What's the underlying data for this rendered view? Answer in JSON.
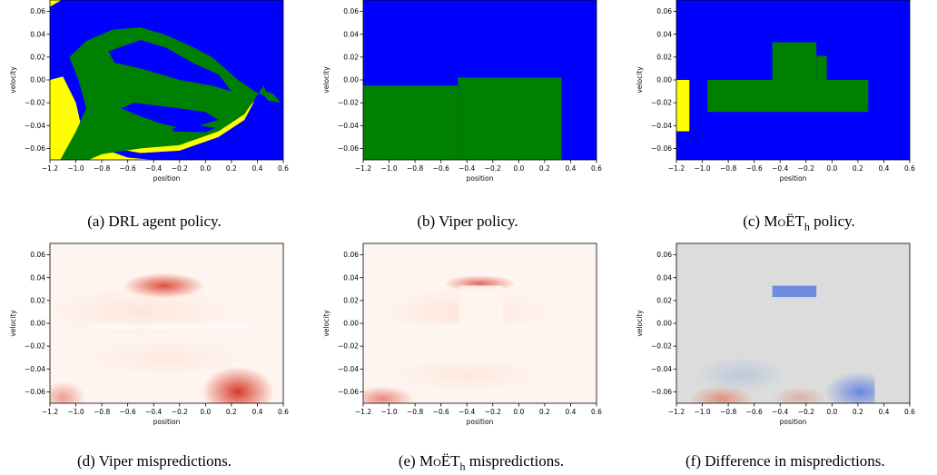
{
  "colors": {
    "class_left": "#ffff00",
    "class_none": "#008000",
    "class_right": "#0000ff",
    "reds_light": "#fff5f0",
    "reds_dark": "#d7301f",
    "diff_neutral": "#dcdcdc",
    "diff_blue": "#4a72e0",
    "diff_red": "#e0603a"
  },
  "captions": {
    "a": "(a) DRL agent policy.",
    "b": "(b) Viper policy.",
    "c_prefix": "(c) ",
    "c_name": "MoËT",
    "c_sub": "h",
    "c_suffix": " policy.",
    "d": "(d) Viper mispredictions.",
    "e_prefix": "(e) ",
    "e_name": "MoËT",
    "e_sub": "h",
    "e_suffix": " mispredictions.",
    "f": "(f) Difference in mispredictions."
  },
  "chart_data": [
    {
      "id": "a",
      "type": "heatmap",
      "xlabel": "position",
      "ylabel": "velocity",
      "xlim": [
        -1.2,
        0.6
      ],
      "ylim": [
        -0.07,
        0.07
      ],
      "xticks": [
        "−1.2",
        "−1.0",
        "−0.8",
        "−0.6",
        "−0.4",
        "−0.2",
        "0.0",
        "0.2",
        "0.4",
        "0.6"
      ],
      "yticks": [
        "0.06",
        "0.04",
        "0.02",
        "0.00",
        "−0.02",
        "−0.04",
        "−0.06"
      ],
      "classes": [
        "yellow",
        "green",
        "blue"
      ]
    },
    {
      "id": "b",
      "type": "heatmap",
      "xlabel": "position",
      "ylabel": "velocity",
      "xlim": [
        -1.2,
        0.6
      ],
      "ylim": [
        -0.07,
        0.07
      ],
      "xticks": [
        "−1.2",
        "−1.0",
        "−0.8",
        "−0.6",
        "−0.4",
        "−0.2",
        "0.0",
        "0.2",
        "0.4",
        "0.6"
      ],
      "yticks": [
        "0.06",
        "0.04",
        "0.02",
        "0.00",
        "−0.02",
        "−0.04",
        "−0.06"
      ],
      "regions": [
        {
          "class": "green",
          "x": [
            -1.2,
            -0.47
          ],
          "y": [
            -0.07,
            -0.005
          ]
        },
        {
          "class": "green",
          "x": [
            -0.47,
            0.33
          ],
          "y": [
            -0.07,
            0.002
          ]
        }
      ]
    },
    {
      "id": "c",
      "type": "heatmap",
      "xlabel": "position",
      "ylabel": "velocity",
      "xlim": [
        -1.2,
        0.6
      ],
      "ylim": [
        -0.07,
        0.07
      ],
      "xticks": [
        "−1.2",
        "−1.0",
        "−0.8",
        "−0.6",
        "−0.4",
        "−0.2",
        "0.0",
        "0.2",
        "0.4",
        "0.6"
      ],
      "yticks": [
        "0.06",
        "0.04",
        "0.02",
        "0.00",
        "−0.02",
        "−0.04",
        "−0.06"
      ],
      "regions": [
        {
          "class": "yellow",
          "x": [
            -1.2,
            -1.1
          ],
          "y": [
            -0.045,
            0.0
          ]
        },
        {
          "class": "green",
          "x": [
            -0.96,
            0.28
          ],
          "y": [
            -0.028,
            0.0
          ]
        },
        {
          "class": "green",
          "x": [
            -0.46,
            -0.12
          ],
          "y": [
            0.0,
            0.033
          ]
        },
        {
          "class": "green",
          "x": [
            -0.12,
            -0.04
          ],
          "y": [
            0.0,
            0.021
          ]
        }
      ]
    },
    {
      "id": "d",
      "type": "heatmap",
      "xlabel": "position",
      "ylabel": "velocity",
      "xlim": [
        -1.2,
        0.6
      ],
      "ylim": [
        -0.07,
        0.07
      ],
      "xticks": [
        "−1.2",
        "−1.0",
        "−0.8",
        "−0.6",
        "−0.4",
        "−0.2",
        "0.0",
        "0.2",
        "0.4",
        "0.6"
      ],
      "yticks": [
        "0.06",
        "0.04",
        "0.02",
        "0.00",
        "−0.02",
        "−0.04",
        "−0.06"
      ]
    },
    {
      "id": "e",
      "type": "heatmap",
      "xlabel": "position",
      "ylabel": "velocity",
      "xlim": [
        -1.2,
        0.6
      ],
      "ylim": [
        -0.07,
        0.07
      ],
      "xticks": [
        "−1.2",
        "−1.0",
        "−0.8",
        "−0.6",
        "−0.4",
        "−0.2",
        "0.0",
        "0.2",
        "0.4",
        "0.6"
      ],
      "yticks": [
        "0.06",
        "0.04",
        "0.02",
        "0.00",
        "−0.02",
        "−0.04",
        "−0.06"
      ]
    },
    {
      "id": "f",
      "type": "heatmap",
      "xlabel": "position",
      "ylabel": "velocity",
      "xlim": [
        -1.2,
        0.6
      ],
      "ylim": [
        -0.07,
        0.07
      ],
      "xticks": [
        "−1.2",
        "−1.0",
        "−0.8",
        "−0.6",
        "−0.4",
        "−0.2",
        "0.0",
        "0.2",
        "0.4",
        "0.6"
      ],
      "yticks": [
        "0.06",
        "0.04",
        "0.02",
        "0.00",
        "−0.02",
        "−0.04",
        "−0.06"
      ]
    }
  ]
}
